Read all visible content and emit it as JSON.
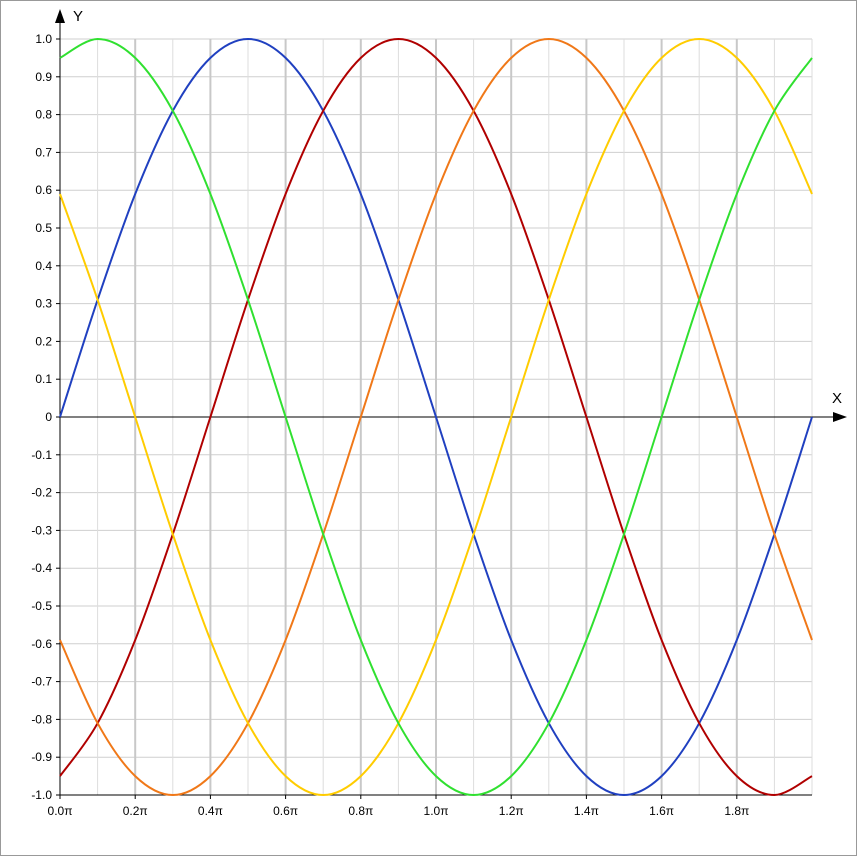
{
  "chart_data": {
    "type": "line",
    "title": "",
    "xlabel": "X",
    "ylabel": "Y",
    "xlim": [
      0,
      2
    ],
    "ylim": [
      -1,
      1
    ],
    "x_unit": "π",
    "grid": true,
    "legend": "none",
    "x_ticks": [
      "0.0π",
      "0.2π",
      "0.4π",
      "0.6π",
      "0.8π",
      "1.0π",
      "1.2π",
      "1.4π",
      "1.6π",
      "1.8π"
    ],
    "x_tick_values": [
      0,
      0.2,
      0.4,
      0.6,
      0.8,
      1.0,
      1.2,
      1.4,
      1.6,
      1.8
    ],
    "y_ticks": [
      "1.0",
      "0.9",
      "0.8",
      "0.7",
      "0.6",
      "0.5",
      "0.4",
      "0.3",
      "0.2",
      "0.1",
      "0",
      "-0.1",
      "-0.2",
      "-0.3",
      "-0.4",
      "-0.5",
      "-0.6",
      "-0.7",
      "-0.8",
      "-0.9",
      "-1.0"
    ],
    "y_tick_values": [
      1.0,
      0.9,
      0.8,
      0.7,
      0.6,
      0.5,
      0.4,
      0.3,
      0.2,
      0.1,
      0,
      -0.1,
      -0.2,
      -0.3,
      -0.4,
      -0.5,
      -0.6,
      -0.7,
      -0.8,
      -0.9,
      -1.0
    ],
    "series": [
      {
        "color": "#2040c0",
        "x": [
          0,
          0.1,
          0.2,
          0.3,
          0.4,
          0.5,
          0.6,
          0.7,
          0.8,
          0.9,
          1.0,
          1.1,
          1.2,
          1.3,
          1.4,
          1.5,
          1.6,
          1.7,
          1.8,
          1.9,
          2.0
        ],
        "y": [
          0,
          0.31,
          0.59,
          0.81,
          0.95,
          1.0,
          0.95,
          0.81,
          0.59,
          0.31,
          0,
          -0.31,
          -0.59,
          -0.81,
          -0.95,
          -1.0,
          -0.95,
          -0.81,
          -0.59,
          -0.31,
          0
        ]
      },
      {
        "color": "#b00000",
        "x": [
          0,
          0.1,
          0.2,
          0.3,
          0.4,
          0.5,
          0.6,
          0.7,
          0.8,
          0.9,
          1.0,
          1.1,
          1.2,
          1.3,
          1.4,
          1.5,
          1.6,
          1.7,
          1.8,
          1.9,
          2.0
        ],
        "y": [
          -0.95,
          -0.81,
          -0.59,
          -0.31,
          0,
          0.31,
          0.59,
          0.81,
          0.95,
          1.0,
          0.95,
          0.81,
          0.59,
          0.31,
          0,
          -0.31,
          -0.59,
          -0.81,
          -0.95,
          -1.0,
          -0.95
        ]
      },
      {
        "color": "#f07818",
        "x": [
          0,
          0.1,
          0.2,
          0.3,
          0.4,
          0.5,
          0.6,
          0.7,
          0.8,
          0.9,
          1.0,
          1.1,
          1.2,
          1.3,
          1.4,
          1.5,
          1.6,
          1.7,
          1.8,
          1.9,
          2.0
        ],
        "y": [
          -0.59,
          -0.81,
          -0.95,
          -1.0,
          -0.95,
          -0.81,
          -0.59,
          -0.31,
          0,
          0.31,
          0.59,
          0.81,
          0.95,
          1.0,
          0.95,
          0.81,
          0.59,
          0.31,
          0,
          -0.31,
          -0.59
        ]
      },
      {
        "color": "#ffcc00",
        "x": [
          0,
          0.1,
          0.2,
          0.3,
          0.4,
          0.5,
          0.6,
          0.7,
          0.8,
          0.9,
          1.0,
          1.1,
          1.2,
          1.3,
          1.4,
          1.5,
          1.6,
          1.7,
          1.8,
          1.9,
          2.0
        ],
        "y": [
          0.59,
          0.31,
          0,
          -0.31,
          -0.59,
          -0.81,
          -0.95,
          -1.0,
          -0.95,
          -0.81,
          -0.59,
          -0.31,
          0,
          0.31,
          0.59,
          0.81,
          0.95,
          1.0,
          0.95,
          0.81,
          0.59
        ]
      },
      {
        "color": "#30e030",
        "x": [
          0,
          0.1,
          0.2,
          0.3,
          0.4,
          0.5,
          0.6,
          0.7,
          0.8,
          0.9,
          1.0,
          1.1,
          1.2,
          1.3,
          1.4,
          1.5,
          1.6,
          1.7,
          1.8,
          1.9,
          2.0
        ],
        "y": [
          0.95,
          1.0,
          0.95,
          0.81,
          0.59,
          0.31,
          0,
          -0.31,
          -0.59,
          -0.81,
          -0.95,
          -1.0,
          -0.95,
          -0.81,
          -0.59,
          -0.31,
          0,
          0.31,
          0.59,
          0.81,
          0.95
        ]
      }
    ]
  }
}
